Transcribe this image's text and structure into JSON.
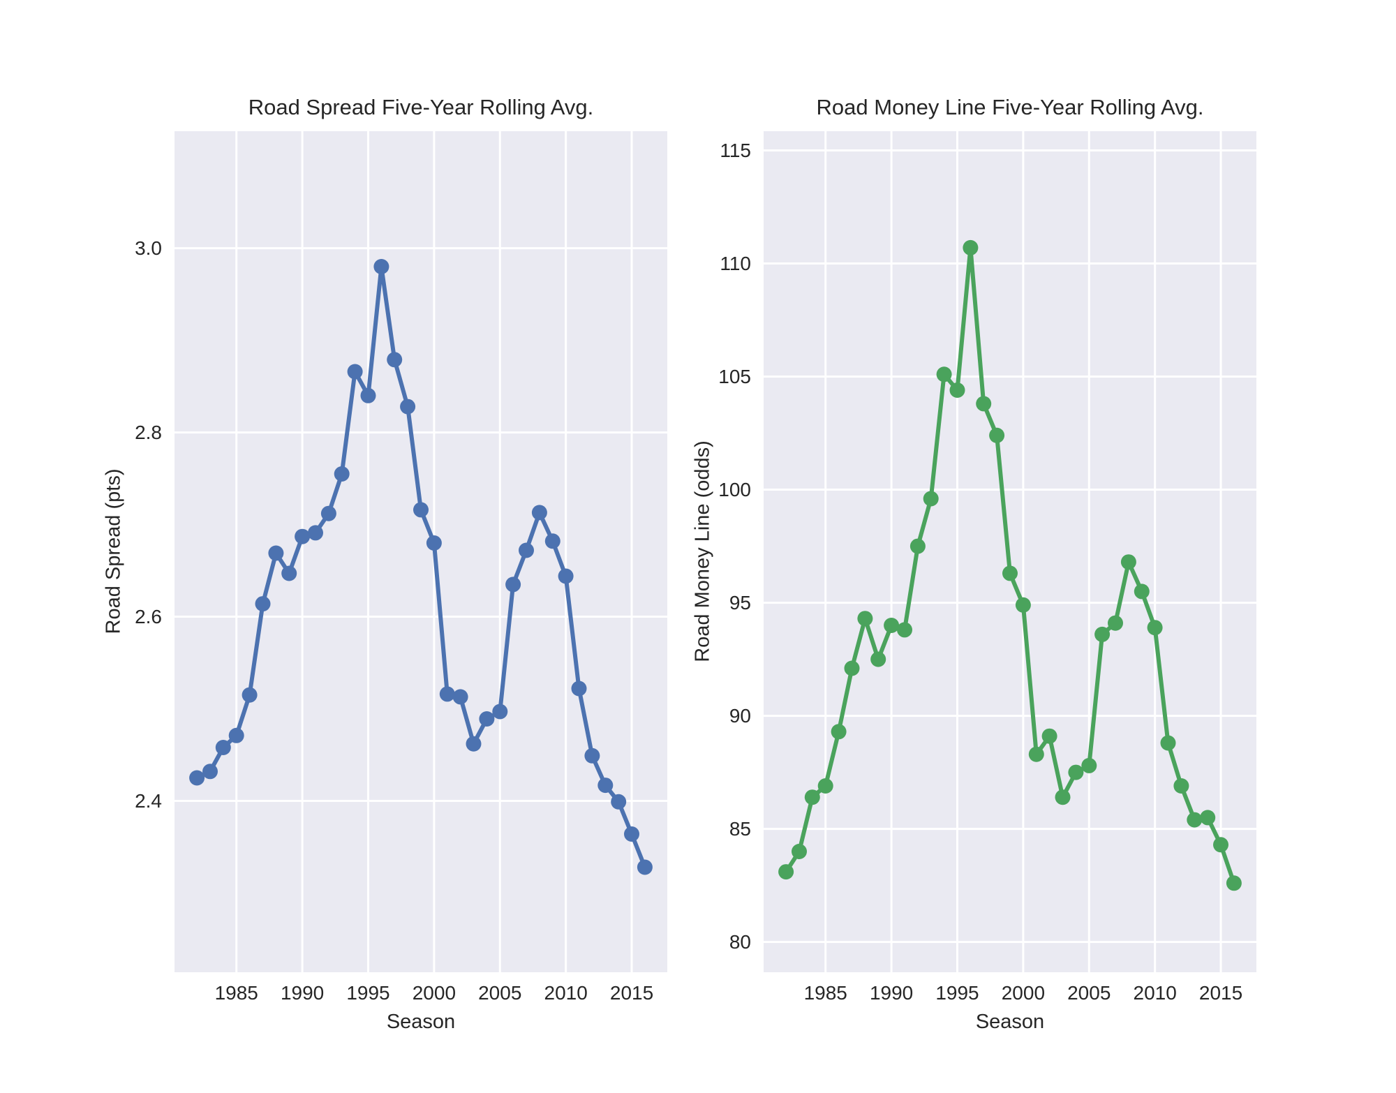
{
  "figure": {
    "background": "#ffffff",
    "plot_background": "#eaeaf2",
    "grid_color": "#ffffff",
    "text_color": "#262626"
  },
  "chart_data": [
    {
      "type": "line",
      "title": "Road Spread Five-Year Rolling Avg.",
      "xlabel": "Season",
      "ylabel": "Road Spread (pts)",
      "line_color": "#4c72b0",
      "grid": true,
      "legend": "none",
      "xlim": [
        1980.3,
        2017.7
      ],
      "ylim": [
        2.214,
        3.127
      ],
      "x_tick_values": [
        1985,
        1990,
        1995,
        2000,
        2005,
        2010,
        2015
      ],
      "x_tick_labels": [
        "1985",
        "1990",
        "1995",
        "2000",
        "2005",
        "2010",
        "2015"
      ],
      "y_tick_values": [
        2.4,
        2.6,
        2.8,
        3.0
      ],
      "y_tick_labels": [
        "2.4",
        "2.6",
        "2.8",
        "3.0"
      ],
      "x": [
        1982,
        1983,
        1984,
        1985,
        1986,
        1987,
        1988,
        1989,
        1990,
        1991,
        1992,
        1993,
        1994,
        1995,
        1996,
        1997,
        1998,
        1999,
        2000,
        2001,
        2002,
        2003,
        2004,
        2005,
        2006,
        2007,
        2008,
        2009,
        2010,
        2011,
        2012,
        2013,
        2014,
        2015,
        2016
      ],
      "y": [
        2.425,
        2.432,
        2.458,
        2.471,
        2.515,
        2.614,
        2.669,
        2.647,
        2.687,
        2.691,
        2.712,
        2.755,
        2.866,
        2.84,
        2.98,
        2.879,
        2.828,
        2.716,
        2.68,
        2.516,
        2.513,
        2.462,
        2.489,
        2.497,
        2.635,
        2.672,
        2.713,
        2.682,
        2.644,
        2.522,
        2.449,
        2.417,
        2.399,
        2.364,
        2.328
      ]
    },
    {
      "type": "line",
      "title": "Road Money Line Five-Year Rolling Avg.",
      "xlabel": "Season",
      "ylabel": "Road Money Line (odds)",
      "line_color": "#4aa35c",
      "grid": true,
      "legend": "none",
      "xlim": [
        1980.3,
        2017.7
      ],
      "ylim": [
        78.66,
        115.85
      ],
      "x_tick_values": [
        1985,
        1990,
        1995,
        2000,
        2005,
        2010,
        2015
      ],
      "x_tick_labels": [
        "1985",
        "1990",
        "1995",
        "2000",
        "2005",
        "2010",
        "2015"
      ],
      "y_tick_values": [
        80,
        85,
        90,
        95,
        100,
        105,
        110,
        115
      ],
      "y_tick_labels": [
        "80",
        "85",
        "90",
        "95",
        "100",
        "105",
        "110",
        "115"
      ],
      "x": [
        1982,
        1983,
        1984,
        1985,
        1986,
        1987,
        1988,
        1989,
        1990,
        1991,
        1992,
        1993,
        1994,
        1995,
        1996,
        1997,
        1998,
        1999,
        2000,
        2001,
        2002,
        2003,
        2004,
        2005,
        2006,
        2007,
        2008,
        2009,
        2010,
        2011,
        2012,
        2013,
        2014,
        2015,
        2016
      ],
      "y": [
        83.1,
        84.0,
        86.4,
        86.9,
        89.3,
        92.1,
        94.3,
        92.5,
        94.0,
        93.8,
        97.5,
        99.6,
        105.1,
        104.4,
        110.7,
        103.8,
        102.4,
        96.3,
        94.9,
        88.3,
        89.1,
        86.4,
        87.5,
        87.8,
        93.6,
        94.1,
        96.8,
        95.5,
        93.9,
        88.8,
        86.9,
        85.4,
        85.5,
        84.3,
        82.6
      ]
    }
  ]
}
